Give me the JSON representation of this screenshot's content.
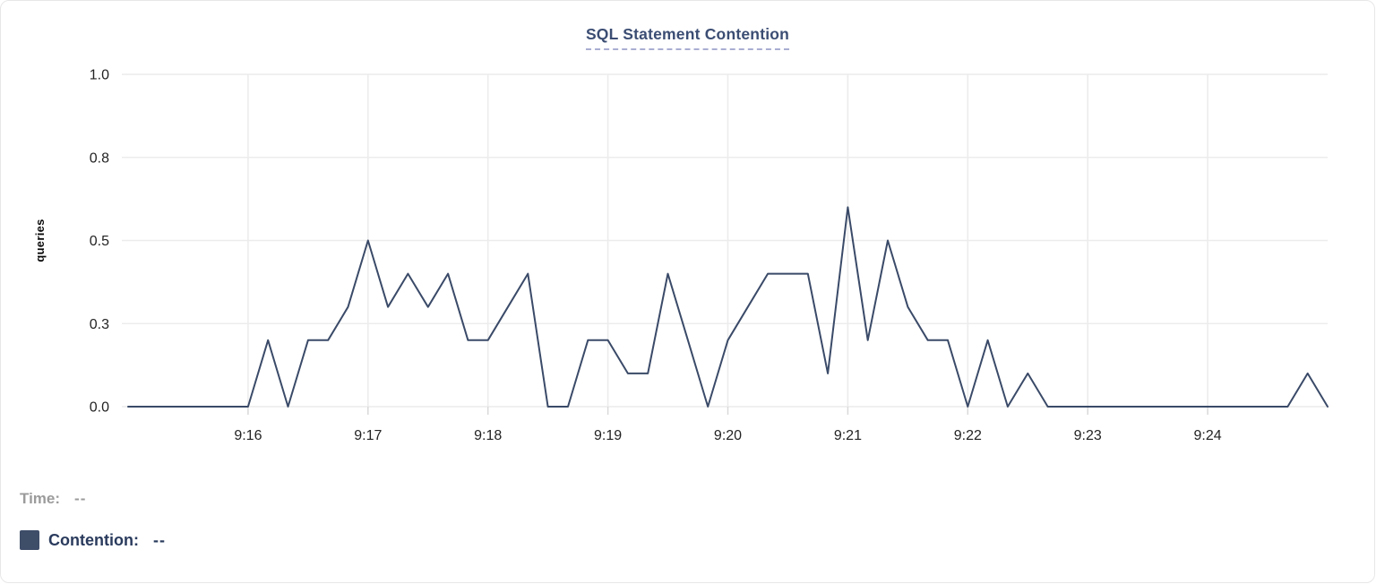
{
  "card": {
    "title": "SQL Statement Contention"
  },
  "legend": {
    "time_label": "Time:",
    "time_value": "--",
    "series_label": "Contention:",
    "series_value": "--",
    "series_color": "#3e4d68"
  },
  "colors": {
    "line": "#3a4a68",
    "grid": "#ececec",
    "tick_mark": "#d9d9d9",
    "axis_text": "#232323",
    "title_text": "#3b4d73",
    "title_underline": "#a9aed2",
    "time_text": "#9b9b9b",
    "contention_text": "#2a3b5d",
    "card_border": "#e7e7e7"
  },
  "chart_data": {
    "type": "line",
    "title": "SQL Statement Contention",
    "xlabel": "",
    "ylabel": "queries",
    "ylim": [
      0,
      1.0
    ],
    "grid": true,
    "legend_position": "bottom-left",
    "y_ticks": [
      {
        "value": 0,
        "label": "0.0"
      },
      {
        "value": 0.25,
        "label": "0.3"
      },
      {
        "value": 0.5,
        "label": "0.5"
      },
      {
        "value": 0.75,
        "label": "0.8"
      },
      {
        "value": 1.0,
        "label": "1.0"
      }
    ],
    "x_ticks": [
      {
        "pos": 0.1,
        "label": "9:16"
      },
      {
        "pos": 0.2,
        "label": "9:17"
      },
      {
        "pos": 0.3,
        "label": "9:18"
      },
      {
        "pos": 0.4,
        "label": "9:19"
      },
      {
        "pos": 0.5,
        "label": "9:20"
      },
      {
        "pos": 0.6,
        "label": "9:21"
      },
      {
        "pos": 0.7,
        "label": "9:22"
      },
      {
        "pos": 0.8,
        "label": "9:23"
      },
      {
        "pos": 0.9,
        "label": "9:24"
      }
    ],
    "series": [
      {
        "name": "Contention",
        "unit": "queries",
        "x": [
          "9:15:00",
          "9:15:10",
          "9:15:20",
          "9:15:30",
          "9:15:40",
          "9:15:50",
          "9:16:00",
          "9:16:10",
          "9:16:20",
          "9:16:30",
          "9:16:40",
          "9:16:50",
          "9:17:00",
          "9:17:10",
          "9:17:20",
          "9:17:30",
          "9:17:40",
          "9:17:50",
          "9:18:00",
          "9:18:10",
          "9:18:20",
          "9:18:30",
          "9:18:40",
          "9:18:50",
          "9:19:00",
          "9:19:10",
          "9:19:20",
          "9:19:30",
          "9:19:40",
          "9:19:50",
          "9:20:00",
          "9:20:10",
          "9:20:20",
          "9:20:30",
          "9:20:40",
          "9:20:50",
          "9:21:00",
          "9:21:10",
          "9:21:20",
          "9:21:30",
          "9:21:40",
          "9:21:50",
          "9:22:00",
          "9:22:10",
          "9:22:20",
          "9:22:30",
          "9:22:40",
          "9:22:50",
          "9:23:00",
          "9:23:10",
          "9:23:20",
          "9:23:30",
          "9:23:40",
          "9:23:50",
          "9:24:00",
          "9:24:10",
          "9:24:20",
          "9:24:30",
          "9:24:40",
          "9:24:50",
          "9:25:00"
        ],
        "values": [
          0,
          0,
          0,
          0,
          0,
          0,
          0,
          0.2,
          0,
          0.2,
          0.2,
          0.3,
          0.5,
          0.3,
          0.4,
          0.3,
          0.4,
          0.2,
          0.2,
          0.3,
          0.4,
          0,
          0,
          0.2,
          0.2,
          0.1,
          0.1,
          0.4,
          0.2,
          0,
          0.2,
          0.3,
          0.4,
          0.4,
          0.4,
          0.1,
          0.6,
          0.2,
          0.5,
          0.3,
          0.2,
          0.2,
          0,
          0.2,
          0,
          0.1,
          0,
          0,
          0,
          0,
          0,
          0,
          0,
          0,
          0,
          0,
          0,
          0,
          0,
          0.1,
          0
        ]
      }
    ]
  }
}
